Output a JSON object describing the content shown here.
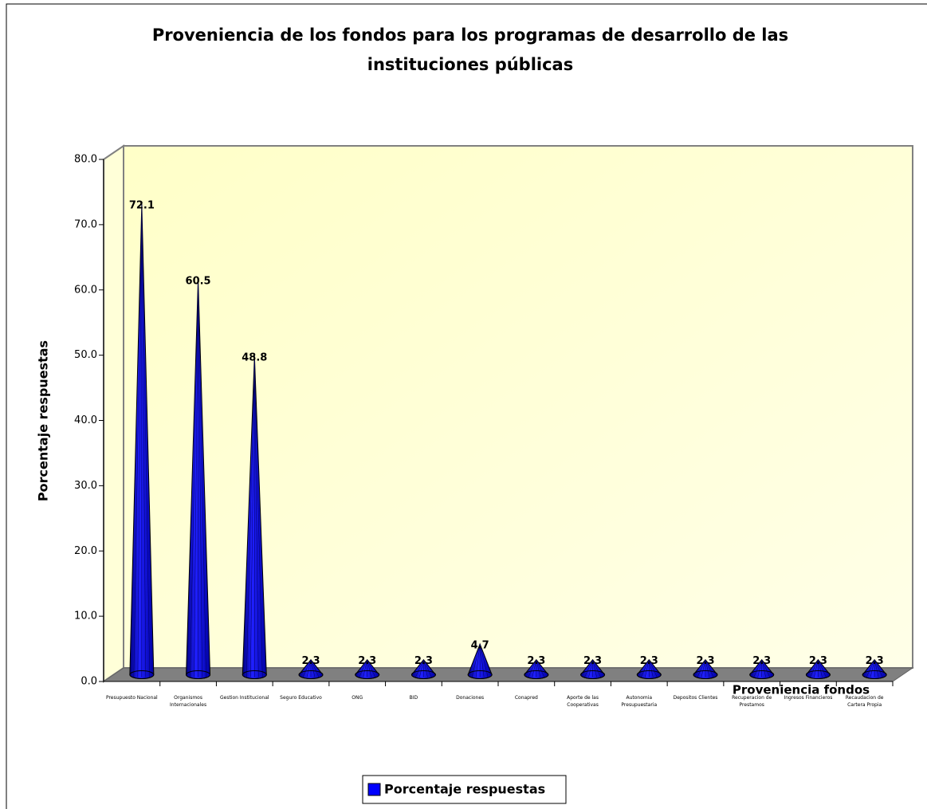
{
  "chart_data": {
    "type": "cone",
    "title": [
      "Proveniencia de los fondos para los programas de desarrollo de las",
      "instituciones públicas"
    ],
    "x_label": "Proveniencia fondos",
    "y_label": "Porcentaje respuestas",
    "categories": [
      "Presupuesto Nacional",
      "Organismos Internacionales",
      "Gestion Institucional",
      "Seguro Educativo",
      "ONG",
      "BID",
      "Donaciones",
      "Conapred",
      "Aporte de las Cooperativas",
      "Autonomia Presupuestaria",
      "Depositos Clientes",
      "Recuperacion de Prestamos",
      "Ingresos Financieros",
      "Recaudacion de Cartera Propia"
    ],
    "series": [
      {
        "name": "Porcentaje respuestas",
        "color": "#0000ff",
        "values": [
          72.1,
          60.5,
          48.8,
          2.3,
          2.3,
          2.3,
          4.7,
          2.3,
          2.3,
          2.3,
          2.3,
          2.3,
          2.3,
          2.3
        ]
      }
    ],
    "ylim": [
      0,
      80
    ],
    "yticks": [
      {
        "value": 0,
        "label": "0.0"
      },
      {
        "value": 10,
        "label": "10.0"
      },
      {
        "value": 20,
        "label": "20.0"
      },
      {
        "value": 30,
        "label": "30.0"
      },
      {
        "value": 40,
        "label": "40.0"
      },
      {
        "value": 50,
        "label": "50.0"
      },
      {
        "value": 60,
        "label": "60.0"
      },
      {
        "value": 70,
        "label": "70.0"
      },
      {
        "value": 80,
        "label": "80.0"
      }
    ],
    "legend": "bottom"
  }
}
